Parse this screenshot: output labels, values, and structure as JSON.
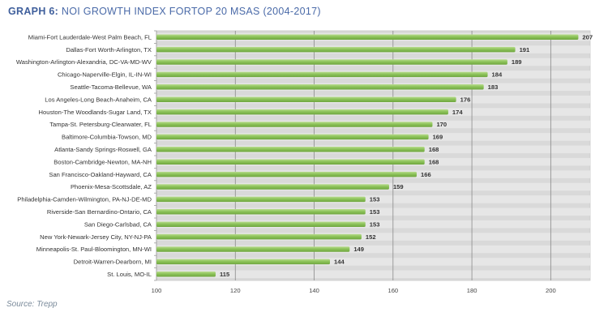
{
  "header": {
    "title_prefix": "GRAPH 6:",
    "title_text": " NOI GROWTH INDEX FORTOP 20 MSAS (2004-2017)"
  },
  "footer": {
    "source": "Source: Trepp"
  },
  "colors": {
    "bar": "#8dc35a",
    "bar_light": "#b8dc8e",
    "bar_dark": "#6fa63f",
    "plot_bg": "#d9d9d9",
    "band": "#e6e6e6",
    "gridline": "#8a8a8a",
    "title": "#4a6aa8"
  },
  "chart_data": {
    "type": "bar",
    "orientation": "horizontal",
    "title": "GRAPH 6: NOI GROWTH INDEX FORTOP 20 MSAS (2004-2017)",
    "xlabel": "",
    "ylabel": "",
    "xlim": [
      100,
      210
    ],
    "xticks": [
      100,
      120,
      140,
      160,
      180,
      200
    ],
    "grid": "vertical",
    "legend": "none",
    "categories": [
      "Miami-Fort Lauderdale-West Palm Beach, FL",
      "Dallas-Fort Worth-Arlington, TX",
      "Washington-Arlington-Alexandria, DC-VA-MD-WV",
      "Chicago-Naperville-Elgin, IL-IN-WI",
      "Seattle-Tacoma-Bellevue, WA",
      "Los Angeles-Long Beach-Anaheim, CA",
      "Houston-The Woodlands-Sugar Land, TX",
      "Tampa-St. Petersburg-Clearwater, FL",
      "Baltimore-Columbia-Towson, MD",
      "Atlanta-Sandy Springs-Roswell, GA",
      "Boston-Cambridge-Newton, MA-NH",
      "San Francisco-Oakland-Hayward, CA",
      "Phoenix-Mesa-Scottsdale, AZ",
      "Philadelphia-Camden-Wilmington, PA-NJ-DE-MD",
      "Riverside-San Bernardino-Ontario, CA",
      "San Diego-Carlsbad, CA",
      "New York-Newark-Jersey City, NY-NJ-PA",
      "Minneapolis-St. Paul-Bloomington, MN-WI",
      "Detroit-Warren-Dearborn, MI",
      "St. Louis, MO-IL"
    ],
    "values": [
      207,
      191,
      189,
      184,
      183,
      176,
      174,
      170,
      169,
      168,
      168,
      166,
      159,
      153,
      153,
      153,
      152,
      149,
      144,
      115
    ],
    "source": "Source: Trepp"
  }
}
